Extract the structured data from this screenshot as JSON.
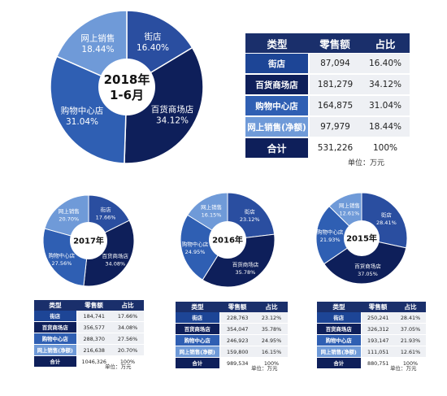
{
  "chart_data": [
    {
      "type": "pie",
      "title": "2018年\n1-6月",
      "slices": [
        {
          "label": "街店",
          "value": 16.4,
          "value_label": "16.40%",
          "color": "#2a4ea0"
        },
        {
          "label": "百货商场店",
          "value": 34.12,
          "value_label": "34.12%",
          "color": "#0e1f5a"
        },
        {
          "label": "购物中心店",
          "value": 31.04,
          "value_label": "31.04%",
          "color": "#2f5fb3"
        },
        {
          "label": "网上销售",
          "value": 18.44,
          "value_label": "18.44%",
          "color": "#6f9ad8"
        }
      ]
    },
    {
      "type": "pie",
      "title": "2017年",
      "slices": [
        {
          "label": "街店",
          "value": 17.66,
          "value_label": "17.66%",
          "color": "#2a4ea0"
        },
        {
          "label": "百货商场店",
          "value": 34.08,
          "value_label": "34.08%",
          "color": "#0e1f5a"
        },
        {
          "label": "购物中心店",
          "value": 27.56,
          "value_label": "27.56%",
          "color": "#2f5fb3"
        },
        {
          "label": "网上销售",
          "value": 20.7,
          "value_label": "20.70%",
          "color": "#6f9ad8"
        }
      ]
    },
    {
      "type": "pie",
      "title": "2016年",
      "slices": [
        {
          "label": "街店",
          "value": 23.12,
          "value_label": "23.12%",
          "color": "#2a4ea0"
        },
        {
          "label": "百货商场店",
          "value": 35.78,
          "value_label": "35.78%",
          "color": "#0e1f5a"
        },
        {
          "label": "购物中心店",
          "value": 24.95,
          "value_label": "24.95%",
          "color": "#2f5fb3"
        },
        {
          "label": "网上销售",
          "value": 16.15,
          "value_label": "16.15%",
          "color": "#6f9ad8"
        }
      ]
    },
    {
      "type": "pie",
      "title": "2015年",
      "slices": [
        {
          "label": "街店",
          "value": 28.41,
          "value_label": "28.41%",
          "color": "#2a4ea0"
        },
        {
          "label": "百货商场店",
          "value": 37.05,
          "value_label": "37.05%",
          "color": "#0e1f5a"
        },
        {
          "label": "购物中心店",
          "value": 21.93,
          "value_label": "21.93%",
          "color": "#2f5fb3"
        },
        {
          "label": "网上销售",
          "value": 12.61,
          "value_label": "12.61%",
          "color": "#6f9ad8"
        }
      ]
    },
    {
      "type": "table",
      "headers": [
        "类型",
        "零售额",
        "占比"
      ],
      "rows": [
        [
          "街店",
          "87,094",
          "16.40%"
        ],
        [
          "百货商场店",
          "181,279",
          "34.12%"
        ],
        [
          "购物中心店",
          "164,875",
          "31.04%"
        ],
        [
          "网上销售(净额)",
          "97,979",
          "18.44%"
        ],
        [
          "合计",
          "531,226",
          "100%"
        ]
      ],
      "unit_note": "单位：万元"
    },
    {
      "type": "table",
      "headers": [
        "类型",
        "零售额",
        "占比"
      ],
      "rows": [
        [
          "街店",
          "184,741",
          "17.66%"
        ],
        [
          "百货商场店",
          "356,577",
          "34.08%"
        ],
        [
          "购物中心店",
          "288,370",
          "27.56%"
        ],
        [
          "网上销售(净额)",
          "216,638",
          "20.70%"
        ],
        [
          "合计",
          "1046,326",
          "100%"
        ]
      ],
      "unit_note": "单位：万元"
    },
    {
      "type": "table",
      "headers": [
        "类型",
        "零售额",
        "占比"
      ],
      "rows": [
        [
          "街店",
          "228,763",
          "23.12%"
        ],
        [
          "百货商场店",
          "354,047",
          "35.78%"
        ],
        [
          "购物中心店",
          "246,923",
          "24.95%"
        ],
        [
          "网上销售(净额)",
          "159,800",
          "16.15%"
        ],
        [
          "合计",
          "989,534",
          "100%"
        ]
      ],
      "unit_note": "单位：万元"
    },
    {
      "type": "table",
      "headers": [
        "类型",
        "零售额",
        "占比"
      ],
      "rows": [
        [
          "街店",
          "250,241",
          "28.41%"
        ],
        [
          "百货商场店",
          "326,312",
          "37.05%"
        ],
        [
          "购物中心店",
          "193,147",
          "21.93%"
        ],
        [
          "网上销售(净额)",
          "111,051",
          "12.61%"
        ],
        [
          "合计",
          "880,751",
          "100%"
        ]
      ],
      "unit_note": "单位：万元"
    }
  ],
  "row_colors": [
    "#1d4596",
    "#0e1f5a",
    "#2f5fb3",
    "#6f9ad8",
    "#0e1f5a"
  ]
}
